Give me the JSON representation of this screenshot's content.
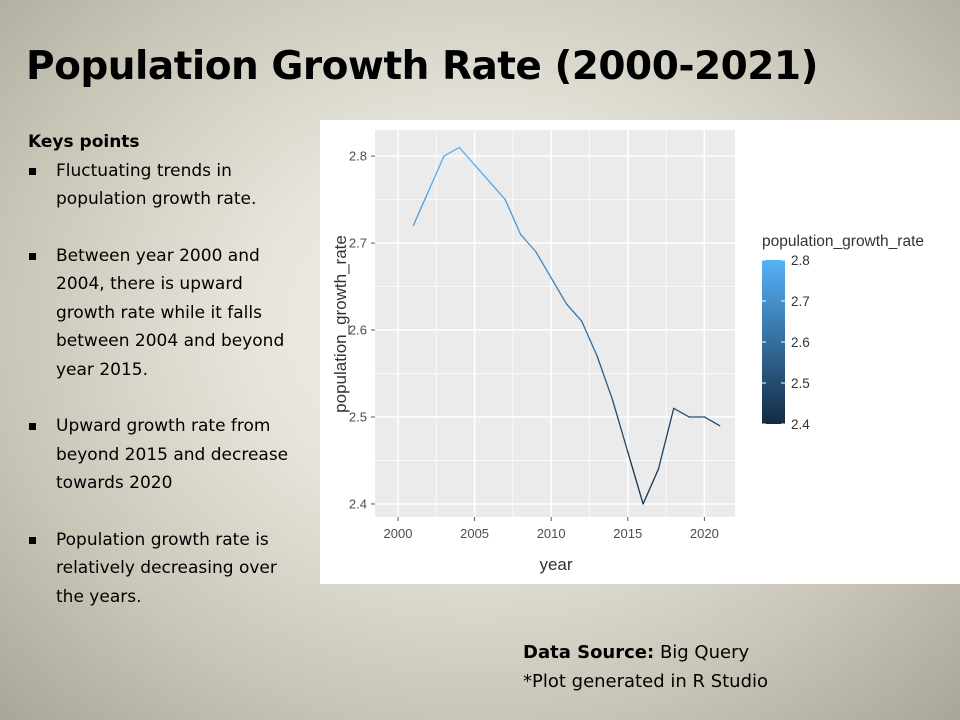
{
  "slide": {
    "title": "Population Growth Rate (2000-2021)",
    "keypoints_heading": "Keys points",
    "keypoints": [
      "Fluctuating trends in population growth rate.",
      "Between year 2000 and 2004, there is upward growth rate while it falls between 2004  and beyond year 2015.",
      "Upward growth rate from beyond 2015 and decrease towards 2020",
      "Population growth rate is relatively decreasing over the years."
    ],
    "source_label": "Data Source:",
    "source_value": "Big Query",
    "note": "*Plot generated in R Studio"
  },
  "chart_data": {
    "type": "line",
    "title": "",
    "xlabel": "year",
    "ylabel": "population_growth_rate",
    "x": [
      2001,
      2002,
      2003,
      2004,
      2005,
      2006,
      2007,
      2008,
      2009,
      2010,
      2011,
      2012,
      2013,
      2014,
      2015,
      2016,
      2017,
      2018,
      2019,
      2020,
      2021
    ],
    "y": [
      2.72,
      2.76,
      2.8,
      2.81,
      2.79,
      2.77,
      2.75,
      2.71,
      2.69,
      2.66,
      2.63,
      2.61,
      2.57,
      2.52,
      2.46,
      2.4,
      2.44,
      2.51,
      2.5,
      2.5,
      2.49
    ],
    "xlim": [
      1998.5,
      2022
    ],
    "ylim": [
      2.385,
      2.83
    ],
    "xticks": [
      2000,
      2005,
      2010,
      2015,
      2020
    ],
    "yticks": [
      2.4,
      2.5,
      2.6,
      2.7,
      2.8
    ],
    "grid": true,
    "color_scale": {
      "title": "population_growth_rate",
      "low_color": "#132b43",
      "high_color": "#56b1f7",
      "range": [
        2.4,
        2.8
      ],
      "breaks": [
        2.8,
        2.7,
        2.6,
        2.5,
        2.4
      ]
    },
    "legend_position": "right"
  }
}
